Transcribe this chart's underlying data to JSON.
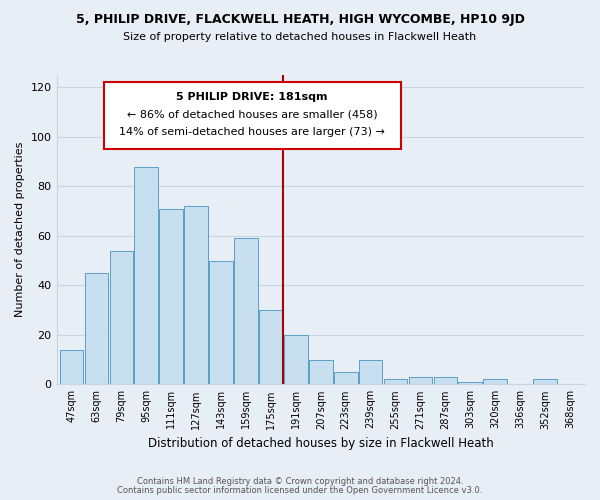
{
  "title": "5, PHILIP DRIVE, FLACKWELL HEATH, HIGH WYCOMBE, HP10 9JD",
  "subtitle": "Size of property relative to detached houses in Flackwell Heath",
  "xlabel": "Distribution of detached houses by size in Flackwell Heath",
  "ylabel": "Number of detached properties",
  "bar_color": "#c8dff0",
  "bar_edge_color": "#5a9fc8",
  "categories": [
    "47sqm",
    "63sqm",
    "79sqm",
    "95sqm",
    "111sqm",
    "127sqm",
    "143sqm",
    "159sqm",
    "175sqm",
    "191sqm",
    "207sqm",
    "223sqm",
    "239sqm",
    "255sqm",
    "271sqm",
    "287sqm",
    "303sqm",
    "320sqm",
    "336sqm",
    "352sqm",
    "368sqm"
  ],
  "values": [
    14,
    45,
    54,
    88,
    71,
    72,
    50,
    59,
    30,
    20,
    10,
    5,
    10,
    2,
    3,
    3,
    1,
    2,
    0,
    2,
    0
  ],
  "vline_x": 8.5,
  "vline_color": "#aa0000",
  "annotation_title": "5 PHILIP DRIVE: 181sqm",
  "annotation_line1": "← 86% of detached houses are smaller (458)",
  "annotation_line2": "14% of semi-detached houses are larger (73) →",
  "annotation_box_color": "#ffffff",
  "annotation_box_edge": "#cc0000",
  "ylim": [
    0,
    125
  ],
  "yticks": [
    0,
    20,
    40,
    60,
    80,
    100,
    120
  ],
  "footer1": "Contains HM Land Registry data © Crown copyright and database right 2024.",
  "footer2": "Contains public sector information licensed under the Open Government Licence v3.0.",
  "bg_color": "#e8eef5",
  "grid_color": "#c8d4e0"
}
